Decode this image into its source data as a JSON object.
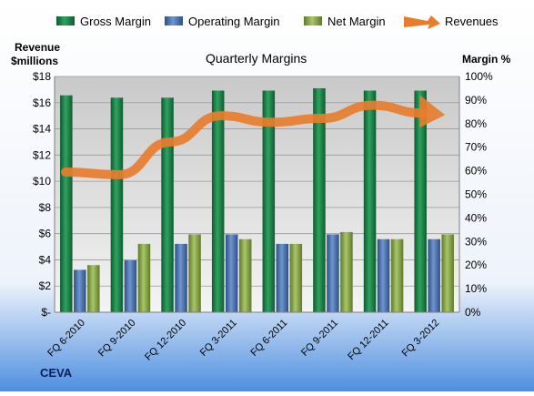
{
  "chart_data": {
    "type": "bar",
    "title": "Quarterly Margins",
    "company": "CEVA",
    "left_axis_label_line1": "Revenue",
    "left_axis_label_line2": "$millions",
    "right_axis_label": "Margin %",
    "categories": [
      "FQ 6-2010",
      "FQ 9-2010",
      "FQ 12-2010",
      "FQ 3-2011",
      "FQ 6-2011",
      "FQ 9-2011",
      "FQ 12-2011",
      "FQ 3-2012"
    ],
    "left_ylim": [
      0,
      18
    ],
    "right_ylim": [
      0,
      100
    ],
    "left_ticks": [
      "$-",
      "$2",
      "$4",
      "$6",
      "$8",
      "$10",
      "$12",
      "$14",
      "$16",
      "$18"
    ],
    "right_ticks": [
      "0%",
      "10%",
      "20%",
      "30%",
      "40%",
      "50%",
      "60%",
      "70%",
      "80%",
      "90%",
      "100%"
    ],
    "legend_position": "top",
    "grid": true,
    "series": [
      {
        "name": "Gross Margin",
        "type": "bar",
        "axis": "right",
        "color": "#1f8a4c",
        "values": [
          92,
          91,
          91,
          94,
          94,
          95,
          94,
          94
        ]
      },
      {
        "name": "Operating Margin",
        "type": "bar",
        "axis": "right",
        "color": "#4a74b5",
        "values": [
          18,
          22,
          29,
          33,
          29,
          33,
          31,
          31
        ]
      },
      {
        "name": "Net Margin",
        "type": "bar",
        "axis": "right",
        "color": "#8fae4e",
        "values": [
          20,
          29,
          33,
          31,
          29,
          34,
          31,
          33
        ]
      },
      {
        "name": "Revenues",
        "type": "line",
        "axis": "left",
        "color": "#e87d2e",
        "values": [
          10.7,
          10.5,
          13.0,
          15.0,
          14.5,
          14.8,
          15.8,
          15.2
        ]
      }
    ]
  }
}
